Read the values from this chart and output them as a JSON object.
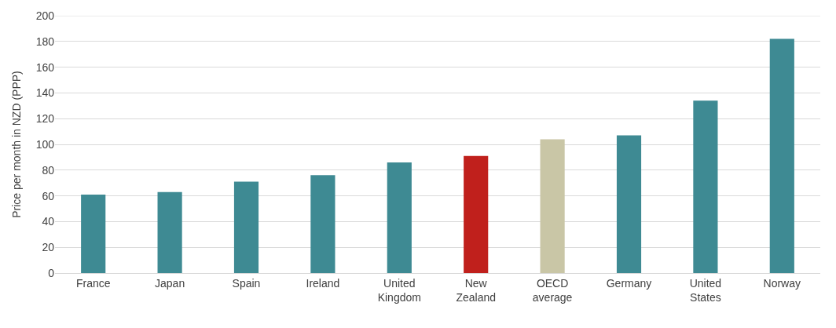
{
  "chart_data": {
    "type": "bar",
    "ylabel": "Price per month in NZD (PPP)",
    "categories": [
      "France",
      "Japan",
      "Spain",
      "Ireland",
      "United Kingdom",
      "New Zealand",
      "OECD average",
      "Germany",
      "United States",
      "Norway"
    ],
    "values": [
      61,
      63,
      71,
      76,
      86,
      91,
      104,
      107,
      134,
      182
    ],
    "colors": [
      "#3e8a93",
      "#3e8a93",
      "#3e8a93",
      "#3e8a93",
      "#3e8a93",
      "#c0201c",
      "#c9c6a6",
      "#3e8a93",
      "#3e8a93",
      "#3e8a93"
    ],
    "ylim": [
      0,
      200
    ],
    "yticks": [
      0,
      20,
      40,
      60,
      80,
      100,
      120,
      140,
      160,
      180,
      200
    ],
    "grid": "y"
  }
}
